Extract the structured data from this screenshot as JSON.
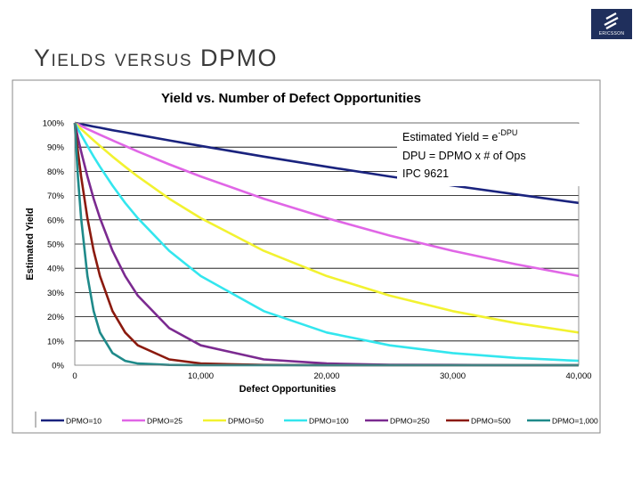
{
  "slide": {
    "title": "Yields versus DPMO",
    "logo_text": "ERICSSON",
    "logo_color": "#1f2f5c"
  },
  "chart_data": {
    "type": "line",
    "title": "Yield vs. Number of Defect Opportunities",
    "xlabel": "Defect Opportunities",
    "ylabel": "Estimated Yield",
    "xlim": [
      0,
      40000
    ],
    "ylim": [
      0,
      100
    ],
    "x_ticks": [
      "0",
      "10,000",
      "20,000",
      "30,000",
      "40,000"
    ],
    "y_ticks": [
      "0%",
      "10%",
      "20%",
      "30%",
      "40%",
      "50%",
      "60%",
      "70%",
      "80%",
      "90%",
      "100%"
    ],
    "grid": "horizontal",
    "legend_position": "bottom",
    "annotation": {
      "line1_prefix": "Estimated Yield = e",
      "line1_sup": "-DPU",
      "line2": "DPU = DPMO x  # of Ops",
      "line3": "IPC 9621"
    },
    "x": [
      0,
      250,
      500,
      1000,
      1500,
      2000,
      3000,
      4000,
      5000,
      7500,
      10000,
      15000,
      20000,
      25000,
      30000,
      35000,
      40000
    ],
    "series": [
      {
        "name": "DPMO=10",
        "color": "#1a237e",
        "values": [
          100,
          99.8,
          99.5,
          99.0,
          98.5,
          98.0,
          97.0,
          96.1,
          95.1,
          92.8,
          90.5,
          86.1,
          81.9,
          77.9,
          74.1,
          70.5,
          67.0
        ]
      },
      {
        "name": "DPMO=25",
        "color": "#e066e6",
        "values": [
          100,
          99.4,
          98.8,
          97.5,
          96.3,
          95.1,
          92.8,
          90.5,
          88.2,
          82.9,
          77.9,
          68.7,
          60.7,
          53.5,
          47.2,
          41.7,
          36.8
        ]
      },
      {
        "name": "DPMO=50",
        "color": "#f2f230",
        "values": [
          100,
          98.8,
          97.5,
          95.1,
          92.8,
          90.5,
          86.1,
          81.9,
          77.9,
          68.7,
          60.7,
          47.2,
          36.8,
          28.7,
          22.3,
          17.4,
          13.5
        ]
      },
      {
        "name": "DPMO=100",
        "color": "#33e6ee",
        "values": [
          100,
          97.5,
          95.1,
          90.5,
          86.1,
          81.9,
          74.1,
          67.0,
          60.7,
          47.2,
          36.8,
          22.3,
          13.5,
          8.2,
          5.0,
          3.0,
          1.8
        ]
      },
      {
        "name": "DPMO=250",
        "color": "#7b2a90",
        "values": [
          100,
          93.9,
          88.2,
          77.9,
          68.7,
          60.7,
          47.2,
          36.8,
          28.7,
          15.3,
          8.2,
          2.4,
          0.7,
          0.2,
          0.1,
          0.0,
          0.0
        ]
      },
      {
        "name": "DPMO=500",
        "color": "#8b1a0e",
        "values": [
          100,
          88.2,
          77.9,
          60.7,
          47.2,
          36.8,
          22.3,
          13.5,
          8.2,
          2.4,
          0.7,
          0.1,
          0.0,
          0.0,
          0.0,
          0.0,
          0.0
        ]
      },
      {
        "name": "DPMO=1,000",
        "color": "#1f8a8a",
        "values": [
          100,
          77.9,
          60.7,
          36.8,
          22.3,
          13.5,
          5.0,
          1.8,
          0.7,
          0.1,
          0.0,
          0.0,
          0.0,
          0.0,
          0.0,
          0.0,
          0.0
        ]
      }
    ]
  }
}
